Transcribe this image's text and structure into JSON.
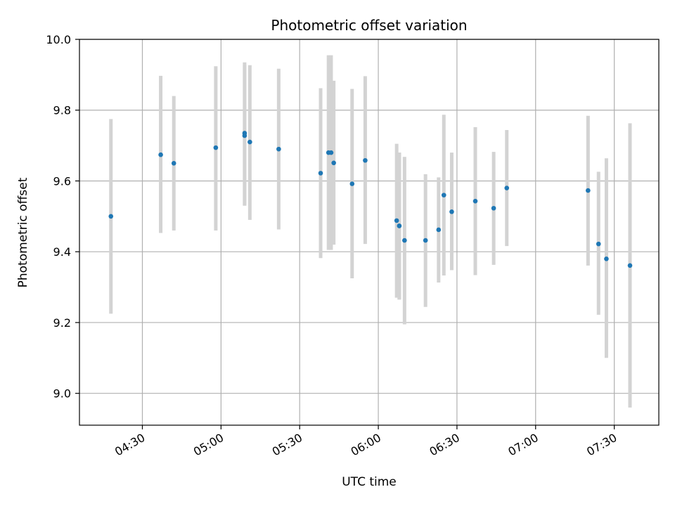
{
  "chart_data": {
    "type": "scatter",
    "title": "Photometric offset variation",
    "xlabel": "UTC time",
    "ylabel": "Photometric offset",
    "x_ticks": [
      "04:30",
      "05:00",
      "05:30",
      "06:00",
      "06:30",
      "07:00",
      "07:30"
    ],
    "y_ticks": [
      "9.0",
      "9.2",
      "9.4",
      "9.6",
      "9.8",
      "10.0"
    ],
    "xlim": [
      "04:06",
      "07:47"
    ],
    "ylim": [
      8.91,
      10.0
    ],
    "grid": true,
    "marker_color": "#1f77b4",
    "errorbar_color": "#d3d3d3",
    "points": [
      {
        "x": "04:18",
        "y": 9.5,
        "ylow": 9.225,
        "yhigh": 9.775
      },
      {
        "x": "04:37",
        "y": 9.674,
        "ylow": 9.453,
        "yhigh": 9.897
      },
      {
        "x": "04:42",
        "y": 9.65,
        "ylow": 9.46,
        "yhigh": 9.84
      },
      {
        "x": "04:58",
        "y": 9.694,
        "ylow": 9.46,
        "yhigh": 9.924
      },
      {
        "x": "05:09",
        "y": 9.735,
        "ylow": 9.532,
        "yhigh": 9.935
      },
      {
        "x": "05:09",
        "y": 9.728,
        "ylow": 9.53,
        "yhigh": 9.928
      },
      {
        "x": "05:11",
        "y": 9.71,
        "ylow": 9.49,
        "yhigh": 9.927
      },
      {
        "x": "05:22",
        "y": 9.69,
        "ylow": 9.463,
        "yhigh": 9.917
      },
      {
        "x": "05:38",
        "y": 9.622,
        "ylow": 9.382,
        "yhigh": 9.862
      },
      {
        "x": "05:41",
        "y": 9.68,
        "ylow": 9.405,
        "yhigh": 9.955
      },
      {
        "x": "05:42",
        "y": 9.68,
        "ylow": 9.405,
        "yhigh": 9.955
      },
      {
        "x": "05:43",
        "y": 9.651,
        "ylow": 9.42,
        "yhigh": 9.883
      },
      {
        "x": "05:50",
        "y": 9.592,
        "ylow": 9.325,
        "yhigh": 9.86
      },
      {
        "x": "05:55",
        "y": 9.658,
        "ylow": 9.422,
        "yhigh": 9.896
      },
      {
        "x": "06:07",
        "y": 9.488,
        "ylow": 9.27,
        "yhigh": 9.705
      },
      {
        "x": "06:08",
        "y": 9.473,
        "ylow": 9.265,
        "yhigh": 9.68
      },
      {
        "x": "06:08",
        "y": 9.473,
        "ylow": 9.265,
        "yhigh": 9.68
      },
      {
        "x": "06:10",
        "y": 9.432,
        "ylow": 9.195,
        "yhigh": 9.668
      },
      {
        "x": "06:18",
        "y": 9.432,
        "ylow": 9.244,
        "yhigh": 9.619
      },
      {
        "x": "06:23",
        "y": 9.462,
        "ylow": 9.313,
        "yhigh": 9.61
      },
      {
        "x": "06:25",
        "y": 9.56,
        "ylow": 9.333,
        "yhigh": 9.787
      },
      {
        "x": "06:28",
        "y": 9.513,
        "ylow": 9.348,
        "yhigh": 9.68
      },
      {
        "x": "06:37",
        "y": 9.543,
        "ylow": 9.334,
        "yhigh": 9.752
      },
      {
        "x": "06:44",
        "y": 9.523,
        "ylow": 9.363,
        "yhigh": 9.682
      },
      {
        "x": "06:49",
        "y": 9.58,
        "ylow": 9.416,
        "yhigh": 9.744
      },
      {
        "x": "07:20",
        "y": 9.573,
        "ylow": 9.361,
        "yhigh": 9.784
      },
      {
        "x": "07:24",
        "y": 9.422,
        "ylow": 9.222,
        "yhigh": 9.626
      },
      {
        "x": "07:27",
        "y": 9.38,
        "ylow": 9.1,
        "yhigh": 9.664
      },
      {
        "x": "07:36",
        "y": 9.361,
        "ylow": 8.96,
        "yhigh": 9.763
      }
    ]
  }
}
